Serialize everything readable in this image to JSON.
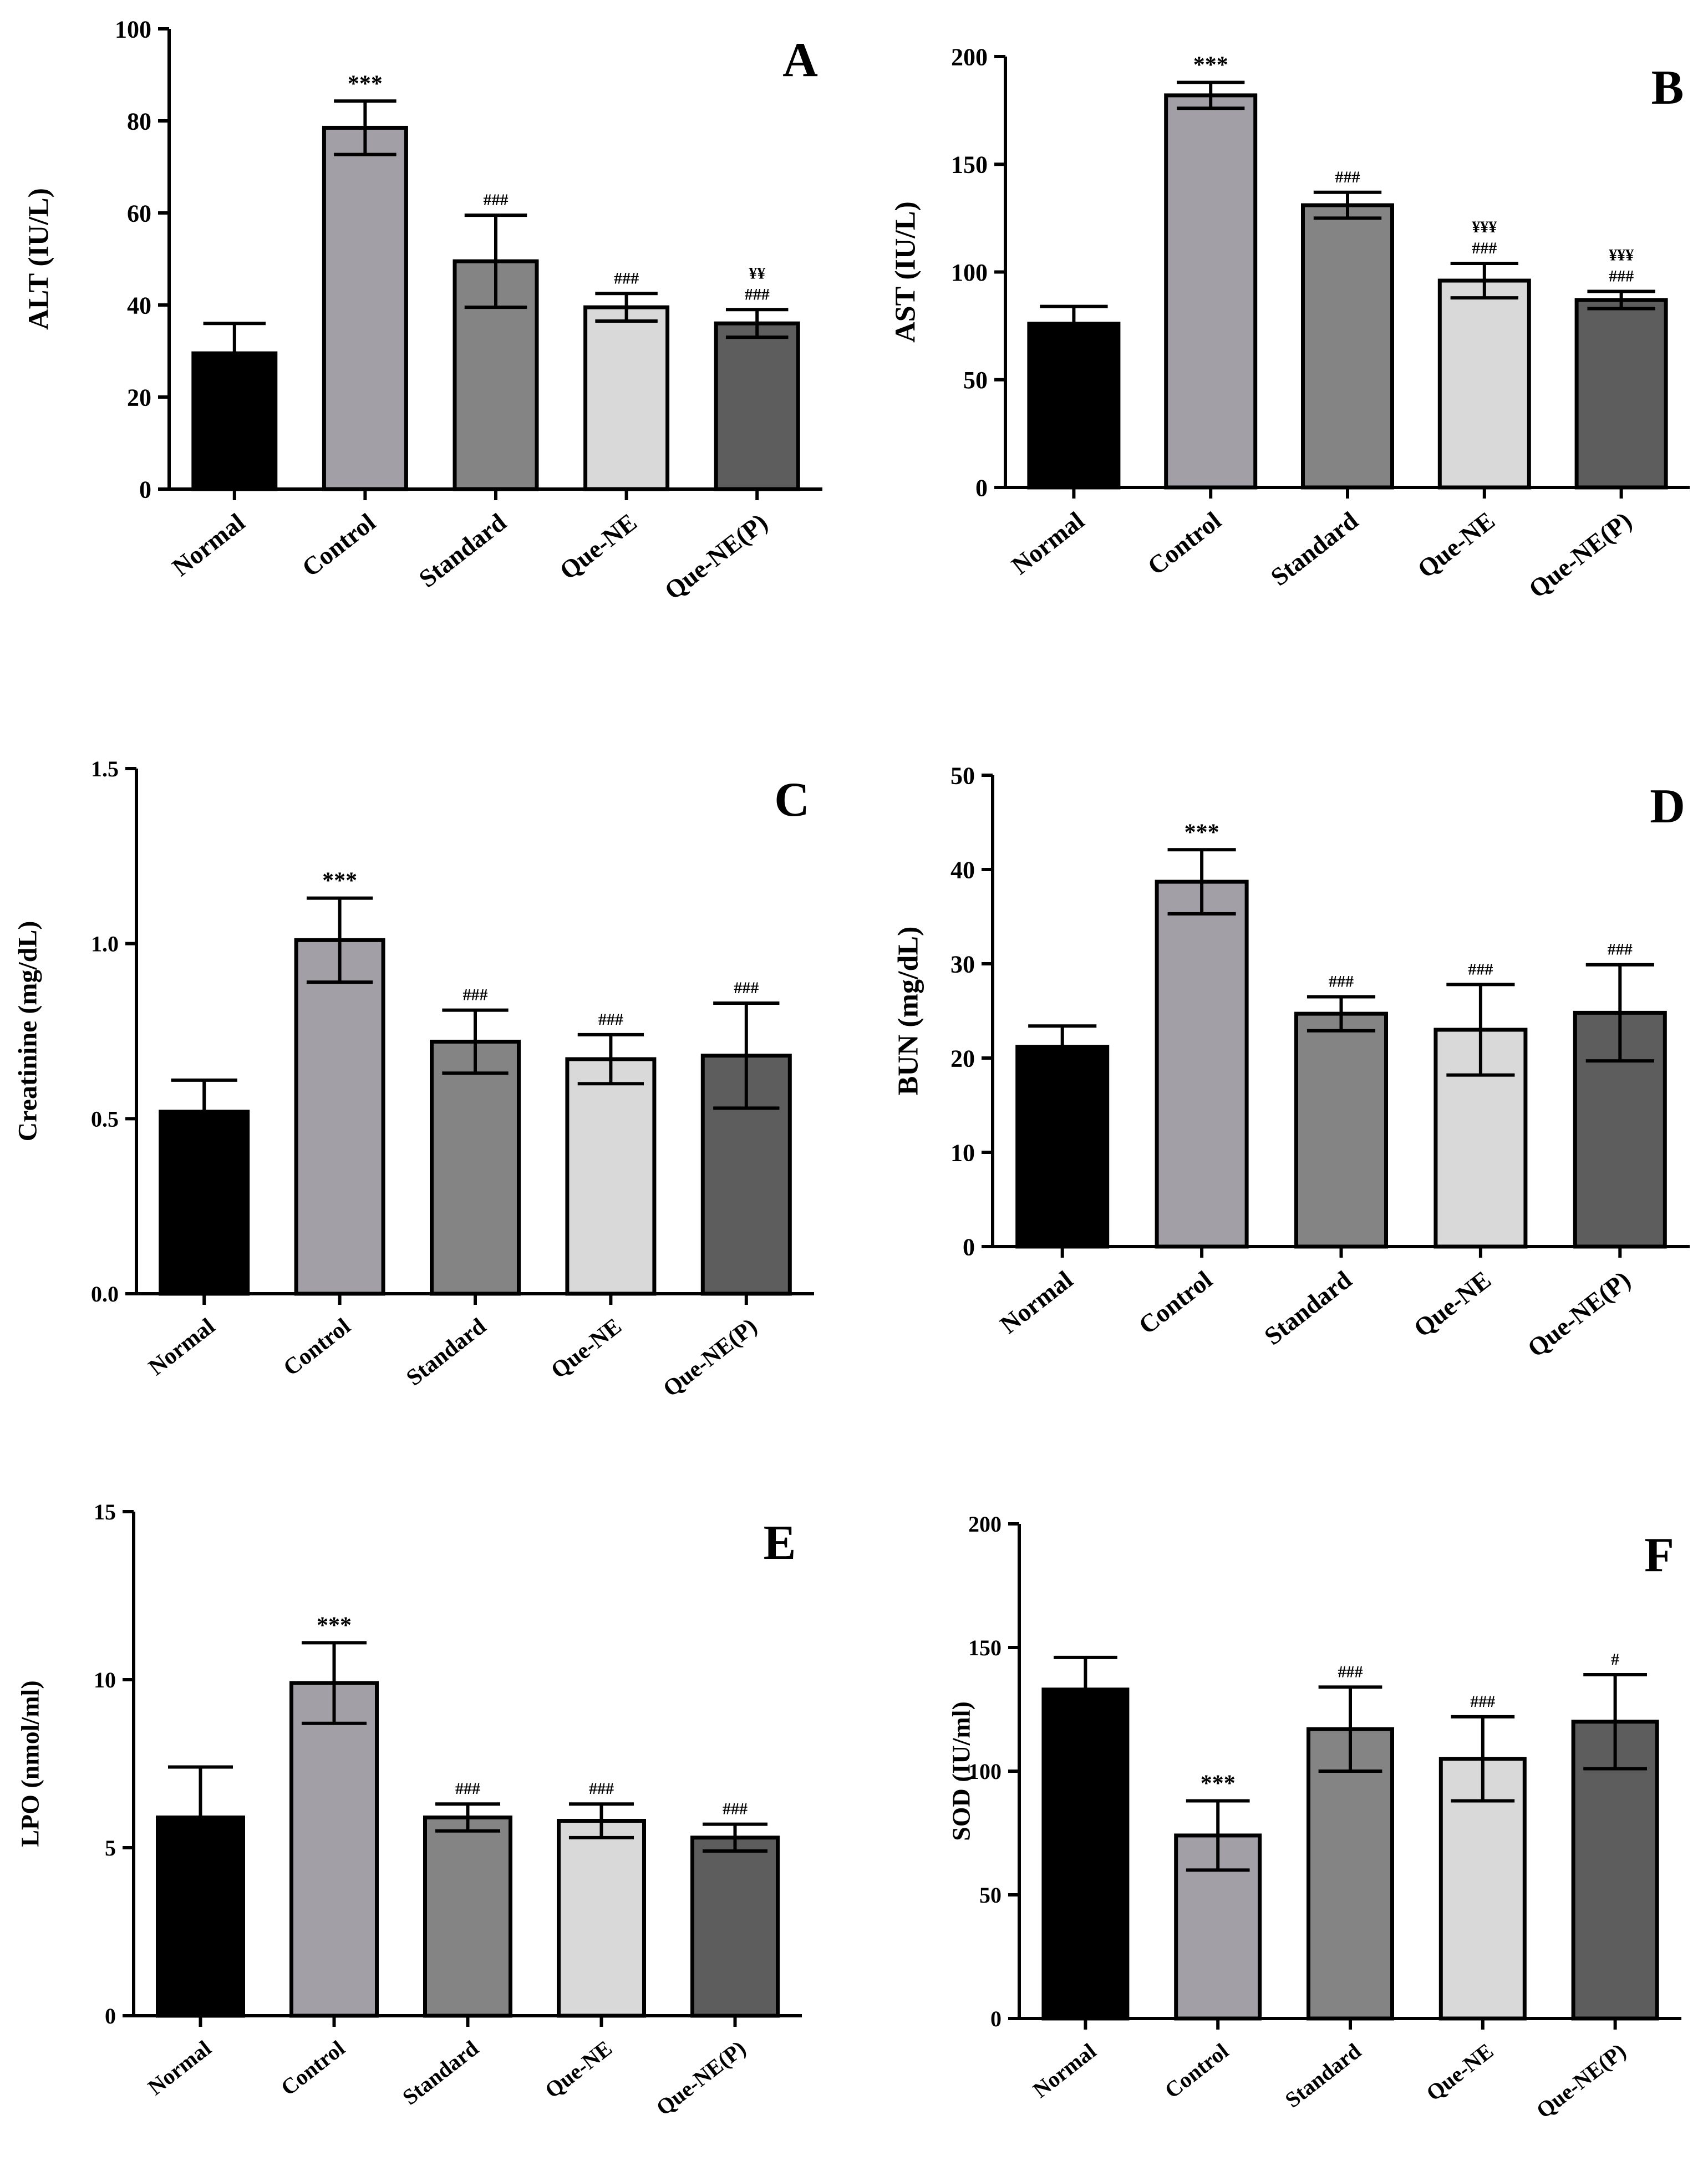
{
  "figure": {
    "colors": {
      "Normal": "#000000",
      "Control": "#a2a0a6",
      "Standard": "#848484",
      "Que-NE": "#d9d9d9",
      "Que-NE(P)": "#5d5d5d"
    }
  },
  "chart_data": [
    {
      "panel_label": "A",
      "type": "bar",
      "categories": [
        "Normal",
        "Control",
        "Standard",
        "Que-NE",
        "Que-NE(P)"
      ],
      "values": [
        29.5,
        78.5,
        49.5,
        39.5,
        36.0
      ],
      "errors": [
        6.5,
        5.8,
        10.0,
        3.0,
        3.0
      ],
      "annotations": [
        "",
        "***",
        "###",
        "###",
        "###"
      ],
      "annotations2": [
        "",
        "",
        "",
        "",
        "¥¥"
      ],
      "ylabel": "ALT (IU/L)",
      "ylim": [
        0,
        100
      ],
      "yticks": [
        0,
        20,
        40,
        60,
        80,
        100
      ],
      "ytick_labels": [
        "0",
        "20",
        "40",
        "60",
        "80",
        "100"
      ]
    },
    {
      "panel_label": "B",
      "type": "bar",
      "categories": [
        "Normal",
        "Control",
        "Standard",
        "Que-NE",
        "Que-NE(P)"
      ],
      "values": [
        76,
        182,
        131,
        96,
        87
      ],
      "errors": [
        8,
        6,
        6,
        8,
        4
      ],
      "annotations": [
        "",
        "***",
        "###",
        "###",
        "###"
      ],
      "annotations2": [
        "",
        "",
        "",
        "¥¥¥",
        "¥¥¥"
      ],
      "ylabel": "AST (IU/L)",
      "ylim": [
        0,
        200
      ],
      "yticks": [
        0,
        50,
        100,
        150,
        200
      ],
      "ytick_labels": [
        "0",
        "50",
        "100",
        "150",
        "200"
      ]
    },
    {
      "panel_label": "C",
      "type": "bar",
      "categories": [
        "Normal",
        "Control",
        "Standard",
        "Que-NE",
        "Que-NE(P)"
      ],
      "values": [
        0.52,
        1.01,
        0.72,
        0.67,
        0.68
      ],
      "errors": [
        0.09,
        0.12,
        0.09,
        0.07,
        0.15
      ],
      "annotations": [
        "",
        "***",
        "###",
        "###",
        "###"
      ],
      "annotations2": [
        "",
        "",
        "",
        "",
        ""
      ],
      "ylabel": "Creatinine (mg/dL)",
      "ylim": [
        0,
        1.5
      ],
      "yticks": [
        0,
        0.5,
        1.0,
        1.5
      ],
      "ytick_labels": [
        "0.0",
        "0.5",
        "1.0",
        "1.5"
      ]
    },
    {
      "panel_label": "D",
      "type": "bar",
      "categories": [
        "Normal",
        "Control",
        "Standard",
        "Que-NE",
        "Que-NE(P)"
      ],
      "values": [
        21.2,
        38.7,
        24.7,
        23.0,
        24.8
      ],
      "errors": [
        2.2,
        3.4,
        1.8,
        4.8,
        5.1
      ],
      "annotations": [
        "",
        "***",
        "###",
        "###",
        "###"
      ],
      "annotations2": [
        "",
        "",
        "",
        "",
        ""
      ],
      "ylabel": "BUN (mg/dL)",
      "ylim": [
        0,
        50
      ],
      "yticks": [
        0,
        10,
        20,
        30,
        40,
        50
      ],
      "ytick_labels": [
        "0",
        "10",
        "20",
        "30",
        "40",
        "50"
      ]
    },
    {
      "panel_label": "E",
      "type": "bar",
      "categories": [
        "Normal",
        "Control",
        "Standard",
        "Que-NE",
        "Que-NE(P)"
      ],
      "values": [
        5.9,
        9.9,
        5.9,
        5.8,
        5.3
      ],
      "errors": [
        1.5,
        1.2,
        0.4,
        0.5,
        0.4
      ],
      "annotations": [
        "",
        "***",
        "###",
        "###",
        "###"
      ],
      "annotations2": [
        "",
        "",
        "",
        "",
        ""
      ],
      "ylabel": "LPO (nmol/ml)",
      "ylim": [
        0,
        15
      ],
      "yticks": [
        0,
        5,
        10,
        15
      ],
      "ytick_labels": [
        "0",
        "5",
        "10",
        "15"
      ]
    },
    {
      "panel_label": "F",
      "type": "bar",
      "categories": [
        "Normal",
        "Control",
        "Standard",
        "Que-NE",
        "Que-NE(P)"
      ],
      "values": [
        133,
        74,
        117,
        105,
        120
      ],
      "errors": [
        13,
        14,
        17,
        17,
        19
      ],
      "annotations": [
        "",
        "***",
        "###",
        "###",
        "#"
      ],
      "annotations2": [
        "",
        "",
        "",
        "",
        ""
      ],
      "ylabel": "SOD (IU/ml)",
      "ylim": [
        0,
        200
      ],
      "yticks": [
        0,
        50,
        100,
        150,
        200
      ],
      "ytick_labels": [
        "0",
        "50",
        "100",
        "150",
        "200"
      ]
    }
  ]
}
